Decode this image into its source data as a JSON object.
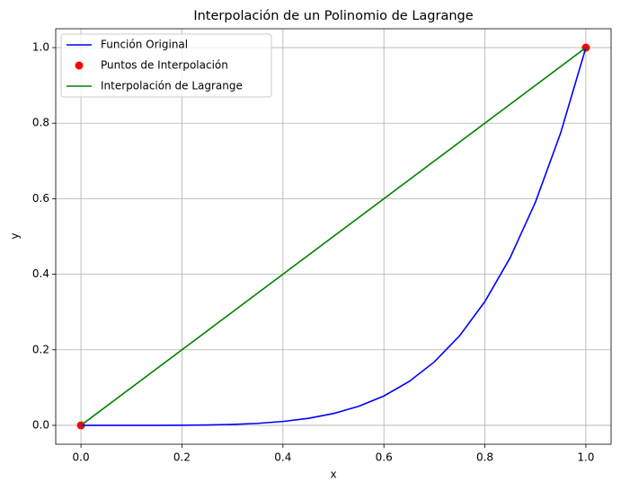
{
  "chart_data": {
    "type": "line",
    "title": "Interpolación de un Polinomio de Lagrange",
    "xlabel": "x",
    "ylabel": "y",
    "xlim": [
      -0.05,
      1.05
    ],
    "ylim": [
      -0.05,
      1.05
    ],
    "xticks": [
      {
        "value": 0,
        "label": "0.0"
      },
      0.2,
      0.4,
      0.6,
      0.8,
      {
        "value": 1,
        "label": "1.0"
      }
    ],
    "yticks": [
      {
        "value": 0,
        "label": "0.0"
      },
      0.2,
      0.4,
      0.6,
      0.8,
      {
        "value": 1,
        "label": "1.0"
      }
    ],
    "grid": true,
    "legend": "upper left",
    "series": [
      {
        "name": "Función Original",
        "type": "line",
        "color": "#0000ff",
        "x": [
          0,
          0.05,
          0.1,
          0.15,
          0.2,
          0.25,
          0.3,
          0.35,
          0.4,
          0.45,
          0.5,
          0.55,
          0.6,
          0.65,
          0.7,
          0.75,
          0.8,
          0.85,
          0.9,
          0.95,
          1
        ],
        "values": [
          0,
          3e-07,
          1e-05,
          7.59e-05,
          0.00032,
          0.000977,
          0.00243,
          0.00525,
          0.01024,
          0.01845,
          0.03125,
          0.0503,
          0.07776,
          0.116,
          0.16807,
          0.2373,
          0.32768,
          0.4437,
          0.59049,
          0.7738,
          1
        ]
      },
      {
        "name": "Puntos de Interpolación",
        "type": "scatter",
        "color": "#ff0000",
        "x": [
          0,
          1
        ],
        "values": [
          0,
          1
        ]
      },
      {
        "name": "Interpolación de Lagrange",
        "type": "line",
        "color": "#008000",
        "x": [
          0,
          1
        ],
        "values": [
          0,
          1
        ]
      }
    ]
  }
}
